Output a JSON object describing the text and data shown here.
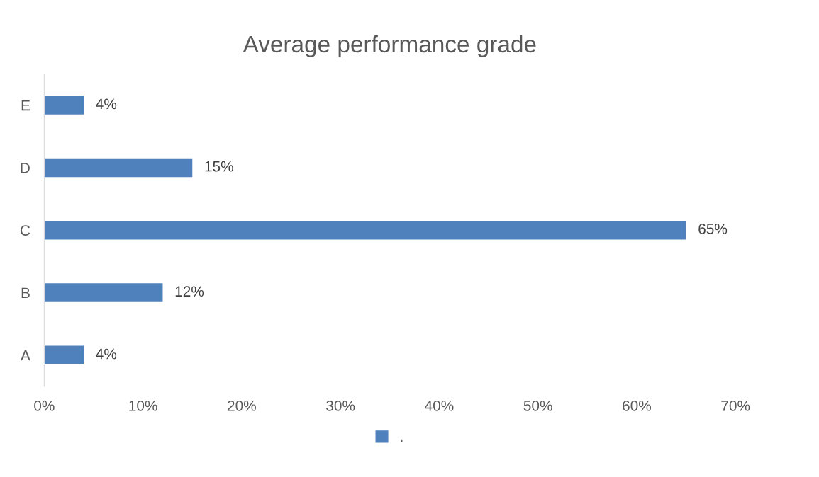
{
  "chart_data": {
    "type": "bar",
    "orientation": "horizontal",
    "title": "Average performance grade",
    "categories": [
      "E",
      "D",
      "C",
      "B",
      "A"
    ],
    "series": [
      {
        "name": ".",
        "color": "#4f81bd",
        "values": [
          4,
          15,
          65,
          12,
          4
        ],
        "value_labels": [
          "4%",
          "15%",
          "65%",
          "12%",
          "4%"
        ]
      }
    ],
    "xlim": [
      0,
      70
    ],
    "xticks": [
      {
        "value": 0,
        "label": "0%"
      },
      {
        "value": 10,
        "label": "10%"
      },
      {
        "value": 20,
        "label": "20%"
      },
      {
        "value": 30,
        "label": "30%"
      },
      {
        "value": 40,
        "label": "40%"
      },
      {
        "value": 50,
        "label": "50%"
      },
      {
        "value": 60,
        "label": "60%"
      },
      {
        "value": 70,
        "label": "70%"
      }
    ],
    "grid": false,
    "legend": "bottom"
  }
}
